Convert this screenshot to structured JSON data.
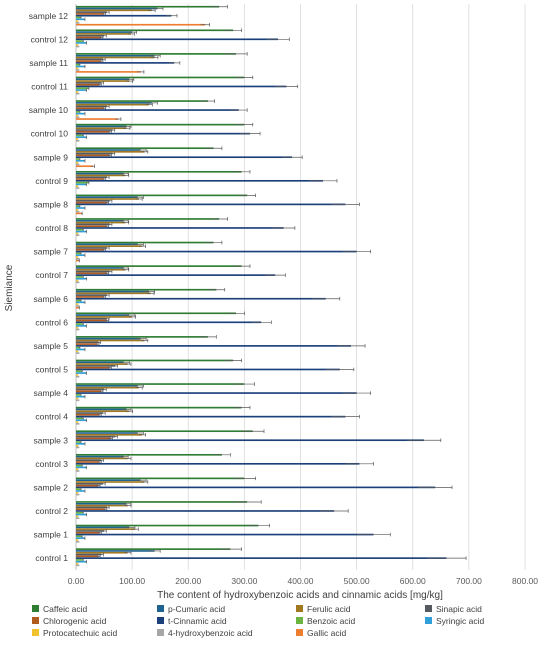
{
  "chart_data": {
    "type": "bar",
    "orientation": "horizontal",
    "xlabel": "The content of hydroxybenzoic acids and cinnamic acids [mg/kg]",
    "ylabel": "Siemiance",
    "xlim": [
      0,
      800
    ],
    "x_ticks": [
      "0.00",
      "100.00",
      "200.00",
      "300.00",
      "400.00",
      "500.00",
      "600.00",
      "700.00",
      "800.00"
    ],
    "grid": "vertical",
    "legend_position": "bottom",
    "categories": [
      "control 1",
      "sample 1",
      "control 2",
      "sample 2",
      "control 3",
      "sample 3",
      "control 4",
      "sample 4",
      "control 5",
      "sample 5",
      "control 6",
      "sample 6",
      "control 7",
      "sample 7",
      "control 8",
      "sample 8",
      "control 9",
      "sample 9",
      "control 10",
      "sample 10",
      "control 11",
      "sample 11",
      "control 12",
      "sample 12"
    ],
    "series": [
      {
        "name": "Caffeic acid",
        "color": "#2e7d32",
        "values": [
          275,
          325,
          305,
          300,
          260,
          315,
          295,
          300,
          280,
          235,
          285,
          250,
          295,
          245,
          255,
          305,
          295,
          245,
          300,
          235,
          300,
          285,
          280,
          255
        ],
        "errors": [
          20,
          20,
          25,
          20,
          15,
          20,
          15,
          18,
          15,
          15,
          15,
          15,
          15,
          15,
          15,
          15,
          15,
          15,
          15,
          12,
          15,
          20,
          15,
          15
        ]
      },
      {
        "name": "p-Cumaric acid",
        "color": "#1f6391",
        "values": [
          140,
          95,
          90,
          115,
          85,
          110,
          90,
          110,
          85,
          115,
          95,
          130,
          85,
          110,
          85,
          110,
          85,
          115,
          90,
          135,
          95,
          140,
          100,
          145
        ],
        "errors": [
          10,
          10,
          8,
          10,
          8,
          10,
          8,
          10,
          10,
          10,
          10,
          10,
          8,
          10,
          8,
          10,
          8,
          10,
          8,
          10,
          8,
          10,
          8,
          10
        ]
      },
      {
        "name": "Ferulic acid",
        "color": "#a07820",
        "values": [
          92,
          105,
          92,
          122,
          92,
          118,
          95,
          112,
          92,
          122,
          100,
          133,
          88,
          118,
          88,
          112,
          88,
          122,
          90,
          130,
          95,
          140,
          98,
          135
        ],
        "errors": [
          6,
          6,
          6,
          6,
          6,
          6,
          6,
          6,
          6,
          6,
          6,
          6,
          6,
          6,
          6,
          6,
          6,
          6,
          6,
          6,
          6,
          6,
          6,
          6
        ]
      },
      {
        "name": "Sinapic acid",
        "color": "#555a60",
        "values": [
          45,
          50,
          55,
          48,
          45,
          70,
          48,
          50,
          70,
          40,
          55,
          55,
          60,
          55,
          60,
          60,
          55,
          65,
          65,
          55,
          45,
          48,
          50,
          55
        ],
        "errors": [
          4,
          4,
          4,
          4,
          4,
          4,
          4,
          4,
          4,
          4,
          4,
          4,
          4,
          4,
          4,
          4,
          4,
          4,
          4,
          4,
          4,
          4,
          4,
          4
        ]
      },
      {
        "name": "Chlorogenic acid",
        "color": "#b05a1e",
        "values": [
          40,
          42,
          52,
          40,
          42,
          62,
          42,
          45,
          60,
          38,
          55,
          50,
          55,
          50,
          55,
          55,
          50,
          60,
          60,
          50,
          42,
          45,
          45,
          50
        ],
        "errors": [
          3,
          3,
          3,
          3,
          3,
          3,
          3,
          3,
          3,
          3,
          3,
          3,
          3,
          3,
          3,
          3,
          3,
          3,
          3,
          3,
          3,
          3,
          3,
          3
        ]
      },
      {
        "name": "t-Cinnamic acid",
        "color": "#1a3f7a",
        "values": [
          660,
          530,
          460,
          640,
          505,
          620,
          480,
          500,
          470,
          490,
          330,
          445,
          355,
          500,
          370,
          480,
          440,
          385,
          310,
          290,
          375,
          175,
          360,
          170
        ],
        "errors": [
          35,
          30,
          25,
          30,
          25,
          30,
          25,
          25,
          25,
          25,
          18,
          25,
          18,
          25,
          20,
          25,
          25,
          18,
          18,
          15,
          20,
          10,
          20,
          10
        ]
      },
      {
        "name": "Benzoic acid",
        "color": "#6cb33f",
        "values": [
          12,
          10,
          12,
          8,
          10,
          8,
          12,
          8,
          10,
          6,
          12,
          8,
          12,
          8,
          12,
          6,
          22,
          6,
          12,
          6,
          22,
          6,
          12,
          8
        ],
        "errors": [
          1,
          1,
          1,
          1,
          1,
          1,
          1,
          1,
          1,
          1,
          1,
          1,
          1,
          1,
          1,
          1,
          1,
          1,
          1,
          1,
          1,
          1,
          1,
          1
        ]
      },
      {
        "name": "Syringic acid",
        "color": "#2e9fd8",
        "values": [
          18,
          15,
          18,
          15,
          18,
          15,
          18,
          15,
          18,
          15,
          18,
          15,
          18,
          15,
          18,
          15,
          18,
          15,
          18,
          15,
          18,
          15,
          18,
          15
        ],
        "errors": [
          1,
          1,
          1,
          1,
          1,
          1,
          1,
          1,
          1,
          1,
          1,
          1,
          1,
          1,
          1,
          1,
          1,
          1,
          1,
          1,
          1,
          1,
          1,
          1
        ]
      },
      {
        "name": "Protocatechuic acid",
        "color": "#f2c12e",
        "values": [
          4,
          4,
          4,
          4,
          4,
          4,
          4,
          4,
          4,
          4,
          4,
          4,
          4,
          4,
          4,
          4,
          4,
          4,
          4,
          4,
          4,
          4,
          4,
          4
        ],
        "errors": [
          0,
          0,
          0,
          0,
          0,
          0,
          0,
          0,
          0,
          0,
          0,
          0,
          0,
          0,
          0,
          0,
          0,
          0,
          0,
          0,
          0,
          0,
          0,
          0
        ]
      },
      {
        "name": "4-hydroxybenzoic acid",
        "color": "#a6a6a6",
        "values": [
          6,
          6,
          6,
          6,
          6,
          6,
          6,
          6,
          6,
          6,
          6,
          6,
          6,
          6,
          6,
          6,
          6,
          6,
          6,
          6,
          6,
          6,
          6,
          6
        ],
        "errors": [
          0,
          0,
          0,
          0,
          0,
          0,
          0,
          0,
          0,
          0,
          0,
          0,
          0,
          0,
          0,
          0,
          0,
          0,
          0,
          0,
          0,
          0,
          0,
          0
        ]
      },
      {
        "name": "Gallic acid",
        "color": "#ed7d31",
        "values": [
          0,
          0,
          0,
          0,
          0,
          0,
          0,
          0,
          0,
          0,
          0,
          5,
          0,
          5,
          0,
          10,
          0,
          30,
          0,
          75,
          0,
          115,
          0,
          230
        ],
        "errors": [
          0,
          0,
          0,
          0,
          0,
          0,
          0,
          0,
          0,
          0,
          0,
          1,
          0,
          1,
          0,
          1,
          0,
          3,
          0,
          5,
          0,
          6,
          0,
          8
        ]
      }
    ]
  }
}
